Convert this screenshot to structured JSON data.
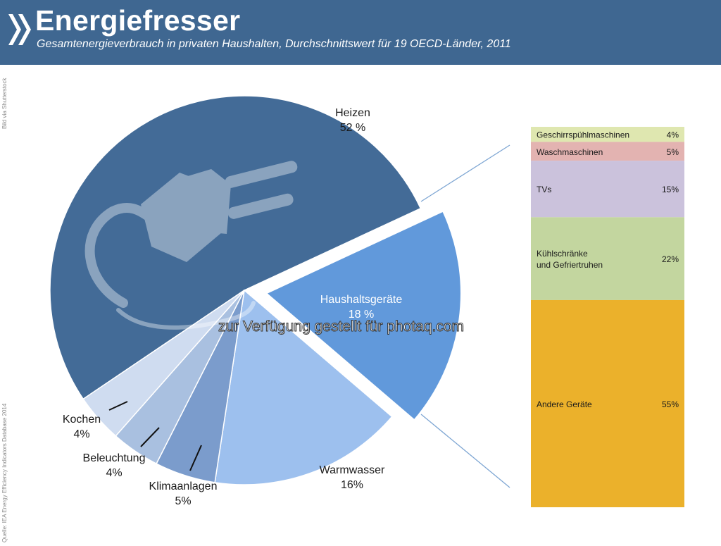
{
  "header": {
    "title": "Energiefresser",
    "subtitle": "Gesamtenergieverbrauch in privaten Haushalten, Durchschnittswert für 19 OECD-Länder, 2011",
    "icon": "chevron-right-double-icon"
  },
  "credits": {
    "image": "Bild via Shutterstock",
    "source": "Quelle: IEA Energy Efficiency Indicators Database 2014"
  },
  "watermark": "zur Verfügung gestellt für photaq.com",
  "colors": {
    "header_bg": "#3f6791",
    "heizen": "#436b97",
    "haushaltsgeraete": "#6199db",
    "warmwasser": "#9dc0ee",
    "klimaanlagen": "#7b9ccc",
    "beleuchtung": "#a9c0e0",
    "kochen": "#cfdcf0",
    "connector": "#7ea6d3"
  },
  "chart_data": [
    {
      "type": "pie",
      "slices": [
        {
          "label": "Heizen",
          "value": 52,
          "value_label": "52 %"
        },
        {
          "label": "Haushaltsgeräte",
          "value": 18,
          "value_label": "18 %",
          "exploded": true
        },
        {
          "label": "Warmwasser",
          "value": 16,
          "value_label": "16%"
        },
        {
          "label": "Klimaanlagen",
          "value": 5,
          "value_label": "5%"
        },
        {
          "label": "Beleuchtung",
          "value": 4,
          "value_label": "4%"
        },
        {
          "label": "Kochen",
          "value": 4,
          "value_label": "4%"
        }
      ]
    },
    {
      "type": "bar",
      "stacked": true,
      "breakdown_of": "Haushaltsgeräte",
      "segments": [
        {
          "label": "Geschirrspühlmaschinen",
          "value": 4,
          "value_label": "4%",
          "color": "#dfe7b0"
        },
        {
          "label": "Waschmaschinen",
          "value": 5,
          "value_label": "5%",
          "color": "#e3b3b1"
        },
        {
          "label": "TVs",
          "value": 15,
          "value_label": "15%",
          "color": "#cbc2dc"
        },
        {
          "label": "Kühlschränke\nund Gefriertruhen",
          "value": 22,
          "value_label": "22%",
          "color": "#c3d69f"
        },
        {
          "label": "Andere Geräte",
          "value": 55,
          "value_label": "55%",
          "color": "#ebb12b"
        }
      ]
    }
  ]
}
